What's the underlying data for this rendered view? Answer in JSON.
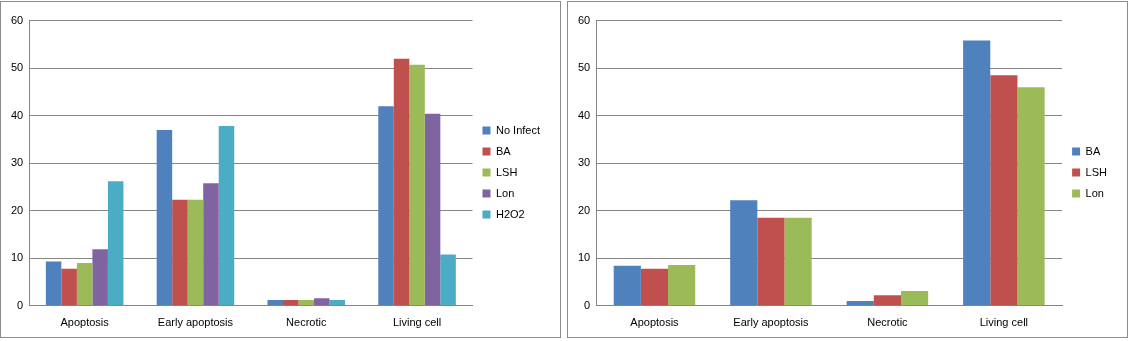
{
  "chart_data": [
    {
      "type": "bar",
      "categories": [
        "Apoptosis",
        "Early apoptosis",
        "Necrotic",
        "Living cell"
      ],
      "series": [
        {
          "name": "No Infect",
          "color": "#4f81bd",
          "values": [
            9.3,
            37,
            1.2,
            42
          ]
        },
        {
          "name": "BA",
          "color": "#c0504d",
          "values": [
            7.8,
            22.3,
            1.2,
            52
          ]
        },
        {
          "name": "LSH",
          "color": "#9bbb59",
          "values": [
            9,
            22.3,
            1.2,
            50.7
          ]
        },
        {
          "name": "Lon",
          "color": "#8064a2",
          "values": [
            11.9,
            25.8,
            1.6,
            40.4
          ]
        },
        {
          "name": "H2O2",
          "color": "#4bacc6",
          "values": [
            26.2,
            37.8,
            1.2,
            10.8
          ]
        }
      ],
      "ylim": [
        0,
        60
      ],
      "yticks": [
        0,
        10,
        20,
        30,
        40,
        50,
        60
      ],
      "grid": true,
      "legend": "right"
    },
    {
      "type": "bar",
      "categories": [
        "Apoptosis",
        "Early apoptosis",
        "Necrotic",
        "Living cell"
      ],
      "series": [
        {
          "name": "BA",
          "color": "#4f81bd",
          "values": [
            8.4,
            22.2,
            1.0,
            55.8
          ]
        },
        {
          "name": "LSH",
          "color": "#c0504d",
          "values": [
            7.8,
            18.5,
            2.2,
            48.5
          ]
        },
        {
          "name": "Lon",
          "color": "#9bbb59",
          "values": [
            8.6,
            18.5,
            3.1,
            46
          ]
        }
      ],
      "ylim": [
        0,
        60
      ],
      "yticks": [
        0,
        10,
        20,
        30,
        40,
        50,
        60
      ],
      "grid": true,
      "legend": "right"
    }
  ]
}
